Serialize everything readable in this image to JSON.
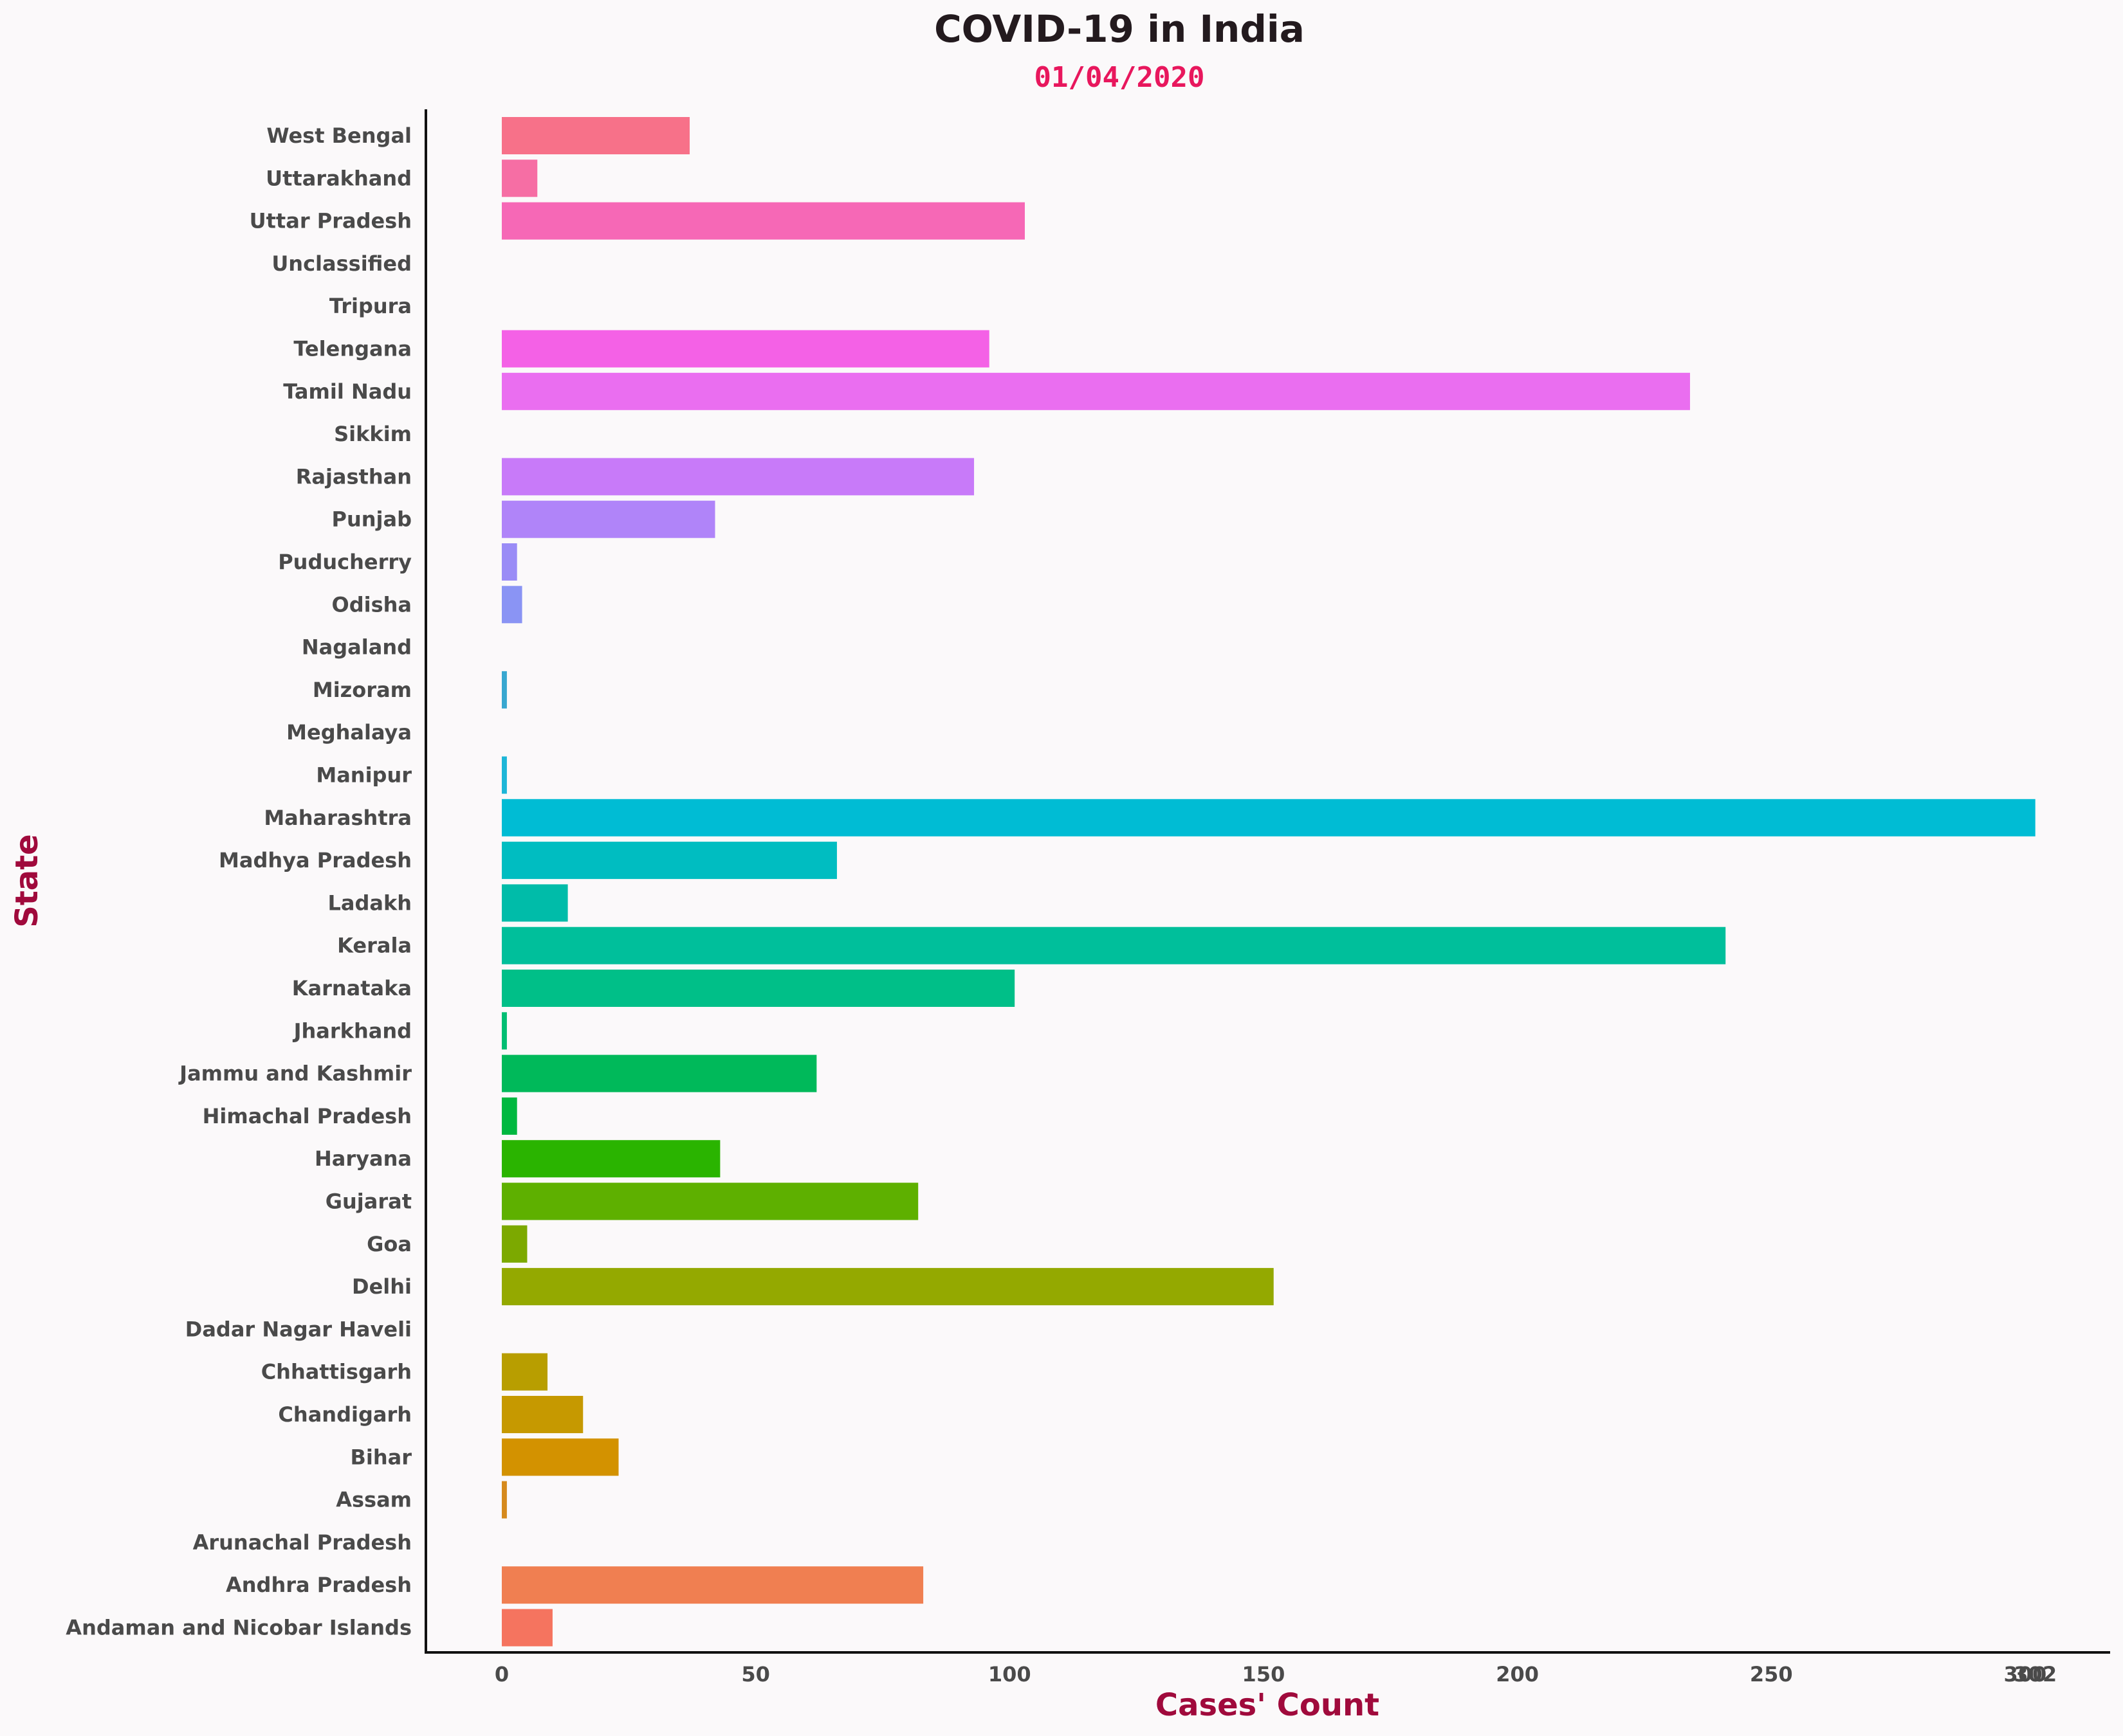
{
  "chart_data": {
    "type": "bar",
    "orientation": "horizontal",
    "title": "COVID-19 in India",
    "subtitle": "01/04/2020",
    "xlabel": "Cases' Count",
    "ylabel": "State",
    "xlim": [
      -15,
      317
    ],
    "xticks": [
      0,
      50,
      100,
      150,
      200,
      250,
      300,
      302
    ],
    "grid": false,
    "legend": "none",
    "colors": {
      "title": "#231a1e",
      "subtitle": "#e8175d",
      "axis_label": "#a00a3c",
      "tick": "#4a4a4a",
      "background": "#fbf9fa"
    },
    "categories": [
      "West Bengal",
      "Uttarakhand",
      "Uttar Pradesh",
      "Unclassified",
      "Tripura",
      "Telengana",
      "Tamil Nadu",
      "Sikkim",
      "Rajasthan",
      "Punjab",
      "Puducherry",
      "Odisha",
      "Nagaland",
      "Mizoram",
      "Meghalaya",
      "Manipur",
      "Maharashtra",
      "Madhya Pradesh",
      "Ladakh",
      "Kerala",
      "Karnataka",
      "Jharkhand",
      "Jammu and Kashmir",
      "Himachal Pradesh",
      "Haryana",
      "Gujarat",
      "Goa",
      "Delhi",
      "Dadar Nagar Haveli",
      "Chhattisgarh",
      "Chandigarh",
      "Bihar",
      "Assam",
      "Arunachal Pradesh",
      "Andhra Pradesh",
      "Andaman and Nicobar Islands"
    ],
    "values": [
      37,
      7,
      103,
      0,
      0,
      96,
      234,
      0,
      93,
      42,
      3,
      4,
      0,
      1,
      0,
      1,
      302,
      66,
      13,
      241,
      101,
      1,
      62,
      3,
      43,
      82,
      5,
      152,
      0,
      9,
      16,
      23,
      1,
      0,
      83,
      10
    ],
    "bar_colors": [
      "#f77189",
      "#f66ea4",
      "#f668b6",
      "#f565cc",
      "#f462dd",
      "#f461e6",
      "#ea6ef0",
      "#dc74f3",
      "#c87af9",
      "#b084f9",
      "#9a8cf6",
      "#8a94f4",
      "#6f9df2",
      "#38a7d0",
      "#2ab0d8",
      "#1db6d8",
      "#00bcd4",
      "#00bdc1",
      "#00bca9",
      "#00bf9b",
      "#00bf88",
      "#00be73",
      "#00b95a",
      "#00b840",
      "#2ab400",
      "#5eb000",
      "#7ca900",
      "#94a900",
      "#ab9f00",
      "#b89e00",
      "#c69900",
      "#d39200",
      "#d68a1d",
      "#e27e3c",
      "#f07f51",
      "#f5745f"
    ]
  }
}
